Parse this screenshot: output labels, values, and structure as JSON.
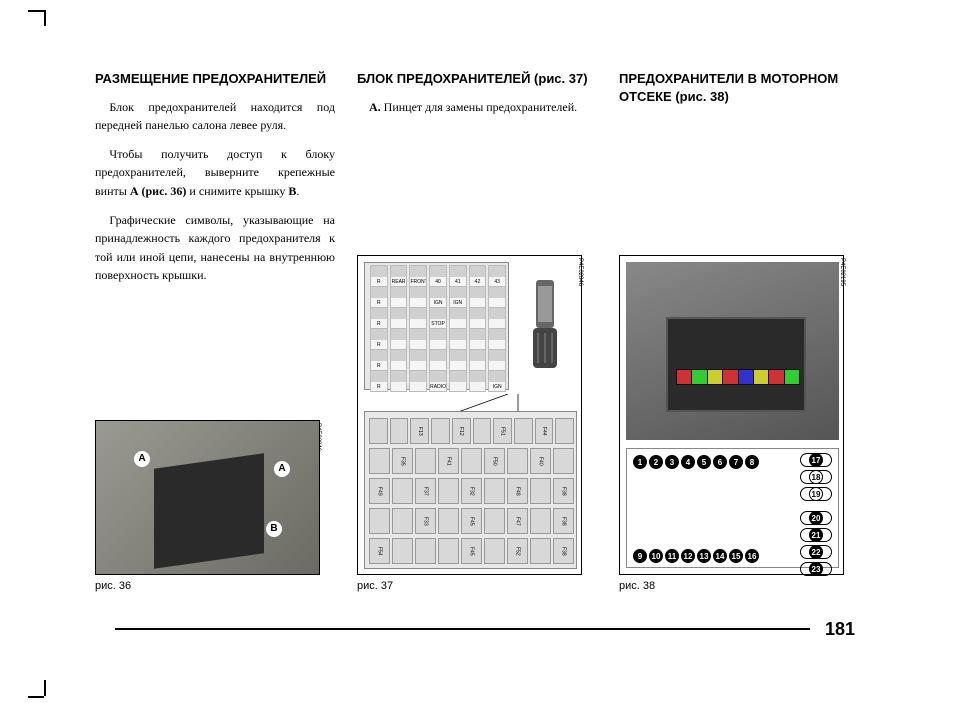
{
  "page_number": "181",
  "col1": {
    "heading": "РАЗМЕЩЕНИЕ ПРЕДОХРАНИТЕЛЕЙ",
    "p1": "Блок предохранителей находится под передней панелью салона левее руля.",
    "p2": "Чтобы получить доступ к блоку предохранителей, выверните крепежные винты ",
    "p2_bold1": "А (рис. 36)",
    "p2_cont": " и снимите крышку ",
    "p2_bold2": "В",
    "p2_end": ".",
    "p3": "Графические символы, указывающие на принадлежность каждого предохранителя к той или иной цепи, нанесены на внутреннюю поверхность крышки."
  },
  "col2": {
    "heading": "БЛОК ПРЕДОХРАНИТЕЛЕЙ (рис. 37)",
    "p1_bold": "А.",
    "p1": " Пинцет для замены предохранителей."
  },
  "col3": {
    "heading": "ПРЕДОХРАНИТЕЛИ В МОТОРНОМ ОТСЕКЕ (рис. 38)"
  },
  "fig36": {
    "label": "рис. 36",
    "code": "P4E02846",
    "badges": {
      "A1": "A",
      "A2": "A",
      "B": "B"
    }
  },
  "fig37": {
    "label": "рис. 37",
    "code": "P4E02846",
    "icon_rows": [
      [
        "R",
        "REAR",
        "FRONT",
        "40",
        "41",
        "42",
        "43"
      ],
      [
        "R",
        "",
        "",
        "IGN",
        "IGN",
        "",
        ""
      ],
      [
        "R",
        "",
        "",
        "STOP",
        "",
        "",
        ""
      ],
      [
        "R",
        "",
        "",
        "",
        "",
        "",
        ""
      ],
      [
        "R",
        "",
        "",
        "",
        "",
        "",
        ""
      ],
      [
        "R",
        "",
        "",
        "RADIO",
        "",
        "",
        "IGN"
      ]
    ],
    "fuse_rows": [
      [
        "",
        "",
        "F13",
        "",
        "F12",
        "",
        "F51",
        "",
        "F44",
        ""
      ],
      [
        "",
        "F35",
        "",
        "F41",
        "",
        "F50",
        "",
        "F40",
        ""
      ],
      [
        "F49",
        "",
        "F37",
        "",
        "F32",
        "",
        "F48",
        "",
        "F38"
      ],
      [
        "",
        "",
        "F33",
        "",
        "F45",
        "",
        "F47",
        "",
        "F38"
      ],
      [
        "F54",
        "",
        "",
        "",
        "F45",
        "",
        "F52",
        "",
        "F38"
      ]
    ]
  },
  "fig38": {
    "label": "рис. 38",
    "code": "P4E02195",
    "top_row": [
      "1",
      "2",
      "3",
      "4",
      "5",
      "6",
      "7",
      "8"
    ],
    "bottom_row": [
      "9",
      "10",
      "11",
      "12",
      "13",
      "14",
      "15",
      "16"
    ],
    "right_col_top": [
      "17",
      "18",
      "19"
    ],
    "right_col_bot": [
      "20",
      "21",
      "22",
      "23"
    ]
  }
}
